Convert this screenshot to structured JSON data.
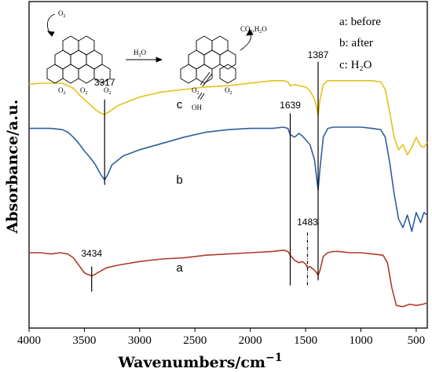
{
  "chart_data": {
    "type": "line",
    "title": "",
    "xlabel": "Wavenumbers/cm",
    "xlabel_sup": "−1",
    "ylabel": "Absorbance/a.u.",
    "xlim": [
      4000,
      400
    ],
    "x_reversed": true,
    "x_ticks": [
      4000,
      3500,
      3000,
      2500,
      2000,
      1500,
      1000,
      500
    ],
    "y_ticks": false,
    "legend": {
      "placement": "top-right",
      "entries": [
        "a: before",
        "b: after",
        "c: H₂O"
      ]
    },
    "series": [
      {
        "id": "a",
        "color": "#b23a2a",
        "points": [
          [
            4000,
            -0.52
          ],
          [
            3900,
            -0.52
          ],
          [
            3800,
            -0.53
          ],
          [
            3720,
            -0.52
          ],
          [
            3650,
            -0.53
          ],
          [
            3600,
            -0.56
          ],
          [
            3550,
            -0.62
          ],
          [
            3500,
            -0.68
          ],
          [
            3450,
            -0.7
          ],
          [
            3420,
            -0.7
          ],
          [
            3380,
            -0.68
          ],
          [
            3300,
            -0.64
          ],
          [
            3200,
            -0.62
          ],
          [
            3000,
            -0.59
          ],
          [
            2800,
            -0.57
          ],
          [
            2600,
            -0.56
          ],
          [
            2400,
            -0.54
          ],
          [
            2200,
            -0.53
          ],
          [
            2000,
            -0.52
          ],
          [
            1800,
            -0.51
          ],
          [
            1700,
            -0.5
          ],
          [
            1660,
            -0.51
          ],
          [
            1639,
            -0.54
          ],
          [
            1600,
            -0.58
          ],
          [
            1560,
            -0.6
          ],
          [
            1530,
            -0.59
          ],
          [
            1500,
            -0.61
          ],
          [
            1483,
            -0.64
          ],
          [
            1460,
            -0.63
          ],
          [
            1420,
            -0.66
          ],
          [
            1400,
            -0.68
          ],
          [
            1387,
            -0.7
          ],
          [
            1370,
            -0.66
          ],
          [
            1340,
            -0.55
          ],
          [
            1300,
            -0.52
          ],
          [
            1250,
            -0.51
          ],
          [
            1200,
            -0.51
          ],
          [
            1100,
            -0.52
          ],
          [
            1000,
            -0.52
          ],
          [
            900,
            -0.53
          ],
          [
            800,
            -0.54
          ],
          [
            760,
            -0.6
          ],
          [
            720,
            -0.8
          ],
          [
            680,
            -0.94
          ],
          [
            620,
            -0.95
          ],
          [
            560,
            -0.93
          ],
          [
            500,
            -0.94
          ],
          [
            440,
            -0.93
          ],
          [
            400,
            -0.92
          ]
        ]
      },
      {
        "id": "b",
        "color": "#2e5f9e",
        "points": [
          [
            4000,
            0.47
          ],
          [
            3900,
            0.47
          ],
          [
            3800,
            0.47
          ],
          [
            3700,
            0.46
          ],
          [
            3650,
            0.44
          ],
          [
            3600,
            0.4
          ],
          [
            3550,
            0.35
          ],
          [
            3500,
            0.29
          ],
          [
            3450,
            0.24
          ],
          [
            3400,
            0.18
          ],
          [
            3350,
            0.1
          ],
          [
            3317,
            0.06
          ],
          [
            3290,
            0.1
          ],
          [
            3250,
            0.18
          ],
          [
            3150,
            0.25
          ],
          [
            3000,
            0.3
          ],
          [
            2800,
            0.35
          ],
          [
            2600,
            0.4
          ],
          [
            2400,
            0.44
          ],
          [
            2200,
            0.46
          ],
          [
            2000,
            0.47
          ],
          [
            1800,
            0.47
          ],
          [
            1700,
            0.48
          ],
          [
            1660,
            0.47
          ],
          [
            1639,
            0.42
          ],
          [
            1600,
            0.4
          ],
          [
            1560,
            0.43
          ],
          [
            1530,
            0.41
          ],
          [
            1500,
            0.38
          ],
          [
            1460,
            0.34
          ],
          [
            1420,
            0.22
          ],
          [
            1400,
            0.07
          ],
          [
            1387,
            -0.02
          ],
          [
            1370,
            0.15
          ],
          [
            1340,
            0.4
          ],
          [
            1300,
            0.47
          ],
          [
            1250,
            0.48
          ],
          [
            1200,
            0.48
          ],
          [
            1100,
            0.48
          ],
          [
            1000,
            0.48
          ],
          [
            900,
            0.47
          ],
          [
            820,
            0.46
          ],
          [
            780,
            0.4
          ],
          [
            740,
            0.2
          ],
          [
            700,
            -0.05
          ],
          [
            660,
            -0.25
          ],
          [
            620,
            -0.32
          ],
          [
            580,
            -0.22
          ],
          [
            540,
            -0.35
          ],
          [
            500,
            -0.2
          ],
          [
            460,
            -0.28
          ],
          [
            430,
            -0.2
          ],
          [
            400,
            -0.22
          ]
        ]
      },
      {
        "id": "c",
        "color": "#e3c21a",
        "points": [
          [
            4000,
            0.82
          ],
          [
            3900,
            0.83
          ],
          [
            3800,
            0.83
          ],
          [
            3700,
            0.83
          ],
          [
            3650,
            0.81
          ],
          [
            3600,
            0.79
          ],
          [
            3550,
            0.74
          ],
          [
            3500,
            0.7
          ],
          [
            3450,
            0.66
          ],
          [
            3400,
            0.62
          ],
          [
            3350,
            0.59
          ],
          [
            3317,
            0.58
          ],
          [
            3280,
            0.6
          ],
          [
            3200,
            0.65
          ],
          [
            3000,
            0.72
          ],
          [
            2800,
            0.76
          ],
          [
            2600,
            0.78
          ],
          [
            2400,
            0.8
          ],
          [
            2200,
            0.81
          ],
          [
            2000,
            0.83
          ],
          [
            1800,
            0.85
          ],
          [
            1700,
            0.85
          ],
          [
            1660,
            0.84
          ],
          [
            1639,
            0.81
          ],
          [
            1600,
            0.82
          ],
          [
            1560,
            0.81
          ],
          [
            1500,
            0.8
          ],
          [
            1460,
            0.77
          ],
          [
            1420,
            0.7
          ],
          [
            1400,
            0.64
          ],
          [
            1387,
            0.57
          ],
          [
            1370,
            0.7
          ],
          [
            1340,
            0.82
          ],
          [
            1300,
            0.85
          ],
          [
            1250,
            0.85
          ],
          [
            1200,
            0.85
          ],
          [
            1100,
            0.85
          ],
          [
            1000,
            0.85
          ],
          [
            900,
            0.85
          ],
          [
            820,
            0.84
          ],
          [
            780,
            0.78
          ],
          [
            740,
            0.6
          ],
          [
            700,
            0.4
          ],
          [
            660,
            0.3
          ],
          [
            620,
            0.34
          ],
          [
            580,
            0.26
          ],
          [
            540,
            0.32
          ],
          [
            500,
            0.4
          ],
          [
            460,
            0.33
          ],
          [
            430,
            0.32
          ],
          [
            400,
            0.36
          ]
        ]
      }
    ],
    "curve_labels": [
      {
        "text": "a",
        "x": 2640,
        "y": -0.67
      },
      {
        "text": "b",
        "x": 2640,
        "y": 0.03
      },
      {
        "text": "c",
        "x": 2640,
        "y": 0.63
      }
    ],
    "peak_annotations": [
      {
        "label": "3317",
        "x": 3317,
        "line_from": 0.7,
        "line_to": 0.02,
        "label_y": 0.81,
        "style": "solid"
      },
      {
        "label": "1387",
        "x": 1387,
        "line_from": 1.0,
        "line_to": -0.74,
        "label_y": 1.03,
        "style": "solid"
      },
      {
        "label": "1639",
        "x": 1639,
        "line_from": 0.59,
        "line_to": -0.78,
        "label_y": 0.63,
        "style": "solid"
      },
      {
        "label": "1483",
        "x": 1483,
        "line_from": -0.36,
        "line_to": -0.78,
        "label_y": -0.3,
        "style": "dashed"
      },
      {
        "label": "3434",
        "x": 3434,
        "line_from": -0.63,
        "line_to": -0.83,
        "label_y": -0.55,
        "style": "solid"
      }
    ],
    "scheme": {
      "o2": "O",
      "o2_sub": "2",
      "h2o": "H",
      "h2o_sub": "2",
      "h2o_tail": "O",
      "co2h2o": "CO",
      "co2h2o_sub": "2",
      "co2h2o_tail": ",H",
      "co2h2o_sub2": "2",
      "co2h2o_tail2": "O",
      "oh": "OH"
    }
  }
}
